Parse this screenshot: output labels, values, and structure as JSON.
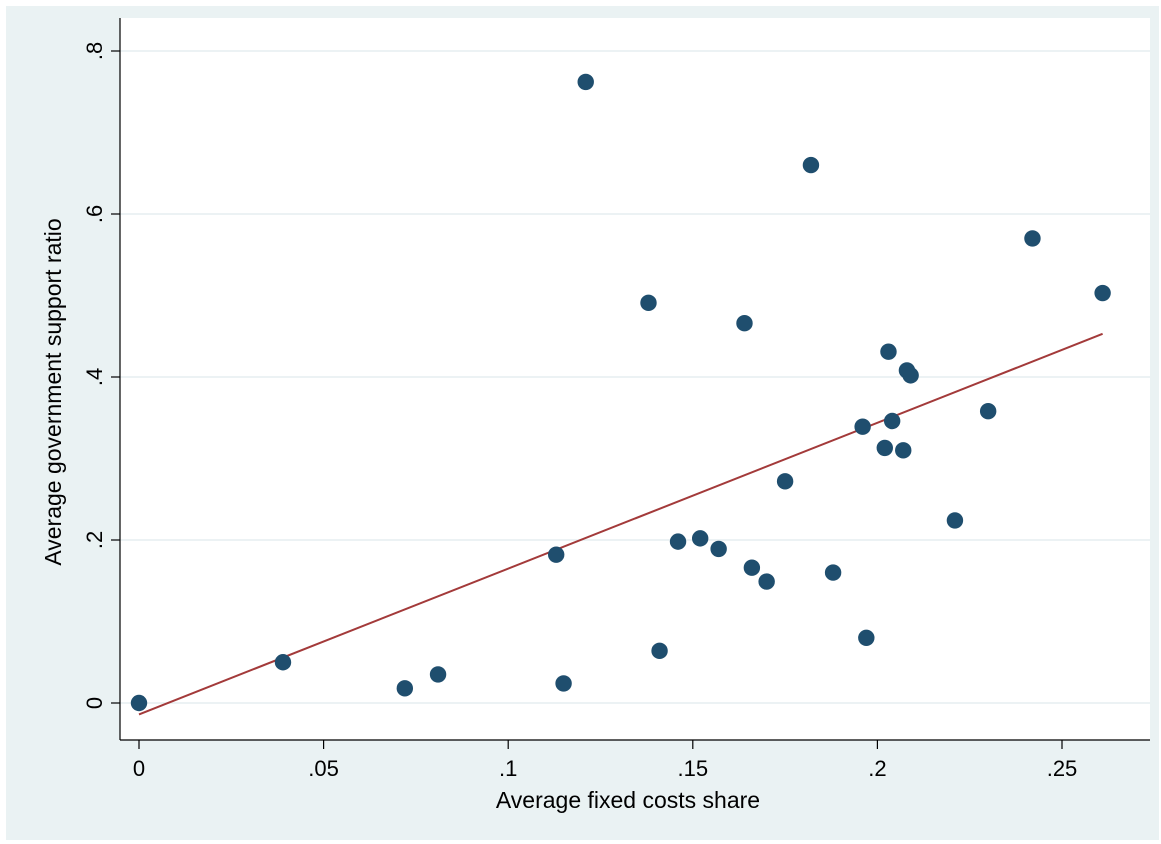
{
  "chart_data": {
    "type": "scatter",
    "xlabel": "Average fixed costs share",
    "ylabel": "Average government support ratio",
    "xlim": [
      0,
      0.265
    ],
    "ylim": [
      0,
      0.8
    ],
    "x_ticks": [
      0,
      0.05,
      0.1,
      0.15,
      0.2,
      0.25
    ],
    "x_tick_labels": [
      "0",
      ".05",
      ".1",
      ".15",
      ".2",
      ".25"
    ],
    "y_ticks": [
      0,
      0.2,
      0.4,
      0.6,
      0.8
    ],
    "y_tick_labels": [
      "0",
      ".2",
      ".4",
      ".6",
      ".8"
    ],
    "grid": "horizontal",
    "series": [
      {
        "points": [
          {
            "x": 0.0,
            "y": 0.0
          },
          {
            "x": 0.039,
            "y": 0.05
          },
          {
            "x": 0.072,
            "y": 0.018
          },
          {
            "x": 0.081,
            "y": 0.035
          },
          {
            "x": 0.113,
            "y": 0.182
          },
          {
            "x": 0.115,
            "y": 0.024
          },
          {
            "x": 0.121,
            "y": 0.762
          },
          {
            "x": 0.138,
            "y": 0.491
          },
          {
            "x": 0.141,
            "y": 0.064
          },
          {
            "x": 0.146,
            "y": 0.198
          },
          {
            "x": 0.152,
            "y": 0.202
          },
          {
            "x": 0.157,
            "y": 0.189
          },
          {
            "x": 0.164,
            "y": 0.466
          },
          {
            "x": 0.166,
            "y": 0.166
          },
          {
            "x": 0.17,
            "y": 0.149
          },
          {
            "x": 0.175,
            "y": 0.272
          },
          {
            "x": 0.182,
            "y": 0.66
          },
          {
            "x": 0.188,
            "y": 0.16
          },
          {
            "x": 0.196,
            "y": 0.339
          },
          {
            "x": 0.197,
            "y": 0.08
          },
          {
            "x": 0.202,
            "y": 0.313
          },
          {
            "x": 0.203,
            "y": 0.431
          },
          {
            "x": 0.204,
            "y": 0.346
          },
          {
            "x": 0.207,
            "y": 0.31
          },
          {
            "x": 0.208,
            "y": 0.408
          },
          {
            "x": 0.209,
            "y": 0.402
          },
          {
            "x": 0.221,
            "y": 0.224
          },
          {
            "x": 0.23,
            "y": 0.358
          },
          {
            "x": 0.242,
            "y": 0.57
          },
          {
            "x": 0.261,
            "y": 0.503
          }
        ]
      }
    ],
    "fit_line": {
      "x": [
        0.0,
        0.261
      ],
      "y": [
        -0.014,
        0.453
      ]
    },
    "colors": {
      "marker": "#1f4e6e",
      "fit_line": "#a33a3a",
      "grid": "#ffffff",
      "plot_background": "#ffffff",
      "outer_background": "#eaf2f3"
    }
  }
}
